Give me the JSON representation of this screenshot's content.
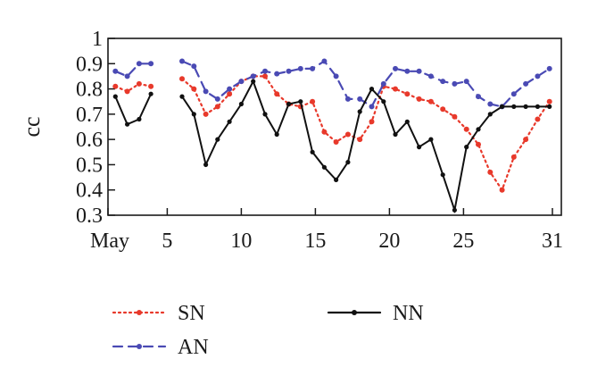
{
  "chart_data": {
    "type": "line",
    "title": "",
    "xlabel": "",
    "ylabel": "cc",
    "xlim": [
      1,
      32
    ],
    "ylim": [
      0.3,
      1.0
    ],
    "y_ticks": [
      0.3,
      0.4,
      0.5,
      0.6,
      0.7,
      0.8,
      0.9,
      1
    ],
    "y_tick_labels": [
      "0.3",
      "0.4",
      "0.5",
      "0.6",
      "0.7",
      "0.8",
      "0.9",
      "1"
    ],
    "x_ticks": [
      1,
      5,
      10,
      15,
      20,
      25,
      31
    ],
    "x_tick_labels": [
      "May",
      "5",
      "10",
      "15",
      "20",
      "25",
      "31"
    ],
    "grid": false,
    "legend": "bottom",
    "series": [
      {
        "name": "SN",
        "color": "#e8392b",
        "style": "dotted",
        "marker": "circle",
        "x": [
          1.5,
          2.3,
          3.1,
          3.9,
          6,
          6.8,
          7.6,
          8.4,
          9.2,
          10,
          10.8,
          11.6,
          12.4,
          13.2,
          14,
          14.8,
          15.6,
          16.4,
          17.2,
          18,
          18.8,
          19.6,
          20.4,
          21.2,
          22,
          22.8,
          23.6,
          24.4,
          25.2,
          26,
          26.8,
          27.6,
          28.4,
          29.2,
          30,
          30.8
        ],
        "y": [
          0.81,
          0.79,
          0.82,
          0.81,
          0.84,
          0.8,
          0.7,
          0.73,
          0.78,
          0.83,
          0.85,
          0.85,
          0.78,
          0.74,
          0.73,
          0.75,
          0.63,
          0.59,
          0.62,
          0.6,
          0.67,
          0.81,
          0.8,
          0.78,
          0.76,
          0.75,
          0.72,
          0.69,
          0.64,
          0.58,
          0.47,
          0.4,
          0.53,
          0.6,
          0.68,
          0.75
        ]
      },
      {
        "name": "AN",
        "color": "#4a4ab4",
        "style": "dashed",
        "marker": "circle",
        "x": [
          1.5,
          2.3,
          3.1,
          3.9,
          6,
          6.8,
          7.6,
          8.4,
          9.2,
          10,
          10.8,
          11.6,
          12.4,
          13.2,
          14,
          14.8,
          15.6,
          16.4,
          17.2,
          18,
          18.8,
          19.6,
          20.4,
          21.2,
          22,
          22.8,
          23.6,
          24.4,
          25.2,
          26,
          26.8,
          27.6,
          28.4,
          29.2,
          30,
          30.8
        ],
        "y": [
          0.87,
          0.85,
          0.9,
          0.9,
          0.91,
          0.89,
          0.79,
          0.76,
          0.8,
          0.83,
          0.85,
          0.87,
          0.86,
          0.87,
          0.88,
          0.88,
          0.91,
          0.85,
          0.76,
          0.76,
          0.73,
          0.82,
          0.88,
          0.87,
          0.87,
          0.85,
          0.83,
          0.82,
          0.83,
          0.77,
          0.74,
          0.73,
          0.78,
          0.82,
          0.85,
          0.88
        ]
      },
      {
        "name": "NN",
        "color": "#111111",
        "style": "solid",
        "marker": "circle",
        "x": [
          1.5,
          2.3,
          3.1,
          3.9,
          6,
          6.8,
          7.6,
          8.4,
          9.2,
          10,
          10.8,
          11.6,
          12.4,
          13.2,
          14,
          14.8,
          15.6,
          16.4,
          17.2,
          18,
          18.8,
          19.6,
          20.4,
          21.2,
          22,
          22.8,
          23.6,
          24.4,
          25.2,
          26,
          26.8,
          27.6,
          28.4,
          29.2,
          30,
          30.8
        ],
        "y": [
          0.77,
          0.66,
          0.68,
          0.78,
          0.77,
          0.7,
          0.5,
          0.6,
          0.67,
          0.74,
          0.83,
          0.7,
          0.62,
          0.74,
          0.75,
          0.55,
          0.49,
          0.44,
          0.51,
          0.71,
          0.8,
          0.75,
          0.62,
          0.67,
          0.57,
          0.6,
          0.46,
          0.32,
          0.57,
          0.64,
          0.7,
          0.73,
          0.73,
          0.73,
          0.73,
          0.73
        ]
      }
    ]
  }
}
